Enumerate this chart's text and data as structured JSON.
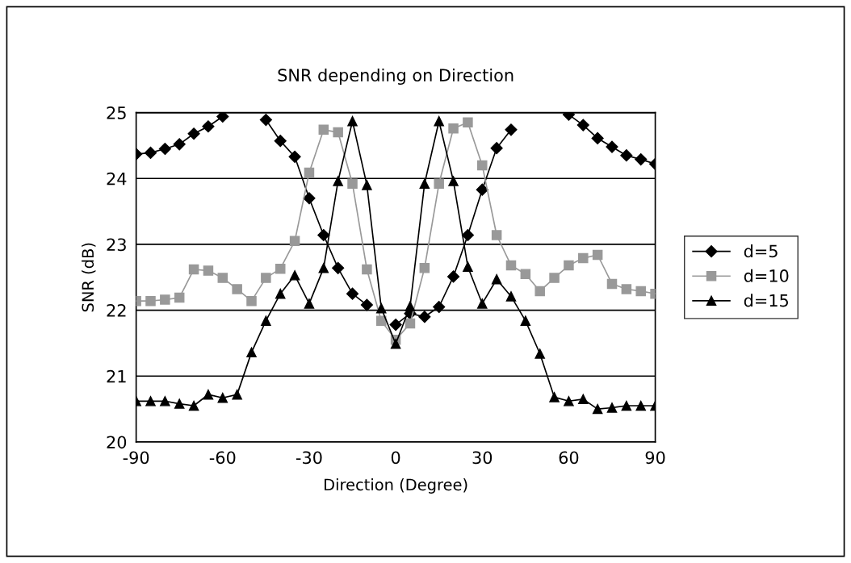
{
  "chart_data": {
    "type": "line",
    "title": "SNR depending on Direction",
    "xlabel": "Direction (Degree)",
    "ylabel": "SNR (dB)",
    "x": [
      -90,
      -85,
      -80,
      -75,
      -70,
      -65,
      -60,
      -55,
      -50,
      -45,
      -40,
      -35,
      -30,
      -25,
      -20,
      -15,
      -10,
      -5,
      0,
      5,
      10,
      15,
      20,
      25,
      30,
      35,
      40,
      45,
      50,
      55,
      60,
      65,
      70,
      75,
      80,
      85,
      90
    ],
    "xlim": [
      -90,
      90
    ],
    "xticks": [
      -90,
      -60,
      -30,
      0,
      30,
      60,
      90
    ],
    "ylim": [
      20,
      25
    ],
    "yticks": [
      20,
      21,
      22,
      23,
      24,
      25
    ],
    "grid": "y",
    "legend": "right",
    "series": [
      {
        "name": "d=5",
        "color": "#000000",
        "marker": "diamond",
        "values": [
          24.37,
          24.39,
          24.45,
          24.52,
          24.68,
          24.79,
          24.94,
          null,
          null,
          24.89,
          24.57,
          24.33,
          23.7,
          23.14,
          22.64,
          22.25,
          22.08,
          null,
          21.78,
          21.95,
          21.9,
          22.05,
          22.51,
          23.14,
          23.83,
          24.46,
          24.74,
          null,
          null,
          null,
          24.97,
          24.81,
          24.61,
          24.48,
          24.35,
          24.29,
          24.22
        ]
      },
      {
        "name": "d=10",
        "color": "#999999",
        "marker": "square",
        "values": [
          22.14,
          22.14,
          22.16,
          22.19,
          22.62,
          22.6,
          22.49,
          22.32,
          22.14,
          22.49,
          22.63,
          23.05,
          24.09,
          24.74,
          24.7,
          23.92,
          22.62,
          21.84,
          21.55,
          21.8,
          22.64,
          23.92,
          24.76,
          24.85,
          24.2,
          23.14,
          22.68,
          22.55,
          22.29,
          22.49,
          22.68,
          22.79,
          22.84,
          22.4,
          22.32,
          22.29,
          22.25
        ]
      },
      {
        "name": "d=15",
        "color": "#000000",
        "marker": "triangle",
        "values": [
          20.62,
          20.62,
          20.62,
          20.58,
          20.55,
          20.72,
          20.67,
          20.72,
          21.36,
          21.84,
          22.25,
          22.53,
          22.1,
          22.64,
          23.96,
          24.87,
          23.9,
          22.03,
          21.49,
          22.06,
          23.92,
          24.87,
          23.96,
          22.66,
          22.1,
          22.47,
          22.21,
          21.84,
          21.34,
          20.68,
          20.62,
          20.65,
          20.5,
          20.52,
          20.55,
          20.55,
          20.55
        ]
      }
    ]
  }
}
